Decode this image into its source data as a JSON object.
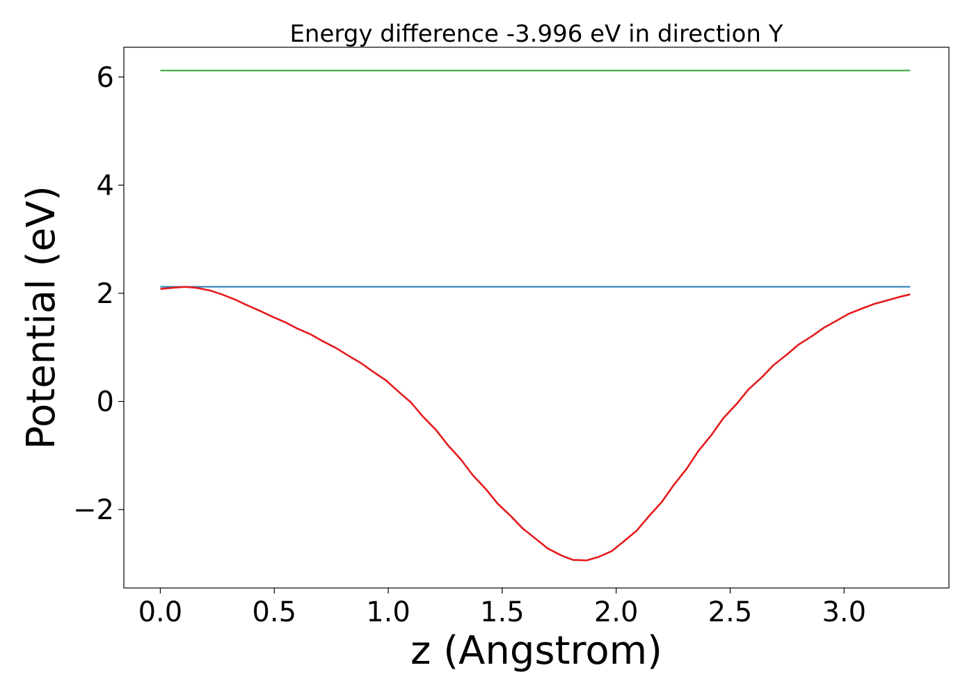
{
  "chart_data": {
    "type": "line",
    "title": "Energy difference -3.996 eV in direction Y",
    "xlabel": "z (Angstrom)",
    "ylabel": "Potential (eV)",
    "xlim": [
      -0.16,
      3.46
    ],
    "ylim": [
      -3.45,
      6.55
    ],
    "xticks": [
      0.0,
      0.5,
      1.0,
      1.5,
      2.0,
      2.5,
      3.0
    ],
    "xtick_labels": [
      "0.0",
      "0.5",
      "1.0",
      "1.5",
      "2.0",
      "2.5",
      "3.0"
    ],
    "yticks": [
      -2,
      0,
      2,
      4,
      6
    ],
    "ytick_labels": [
      "−2",
      "0",
      "2",
      "4",
      "6"
    ],
    "grid": false,
    "series": [
      {
        "color": "#2ca02c",
        "x": [
          0.0,
          3.29
        ],
        "y": [
          6.12,
          6.12
        ]
      },
      {
        "color": "#1f77b4",
        "x": [
          0.0,
          3.29
        ],
        "y": [
          2.12,
          2.12
        ]
      },
      {
        "color": "#e41a1c",
        "x": [
          0.0,
          0.05,
          0.11,
          0.16,
          0.22,
          0.27,
          0.33,
          0.38,
          0.44,
          0.49,
          0.55,
          0.6,
          0.66,
          0.71,
          0.77,
          0.82,
          0.88,
          0.93,
          0.99,
          1.04,
          1.1,
          1.15,
          1.21,
          1.26,
          1.32,
          1.37,
          1.43,
          1.48,
          1.54,
          1.59,
          1.65,
          1.7,
          1.76,
          1.81,
          1.87,
          1.92,
          1.98,
          2.03,
          2.09,
          2.14,
          2.2,
          2.25,
          2.31,
          2.36,
          2.42,
          2.47,
          2.53,
          2.58,
          2.64,
          2.69,
          2.75,
          2.8,
          2.86,
          2.91,
          2.97,
          3.02,
          3.08,
          3.13,
          3.19,
          3.24,
          3.29
        ],
        "y": [
          2.08,
          2.1,
          2.12,
          2.1,
          2.05,
          1.98,
          1.88,
          1.78,
          1.67,
          1.57,
          1.46,
          1.35,
          1.24,
          1.12,
          0.99,
          0.86,
          0.71,
          0.56,
          0.39,
          0.2,
          -0.02,
          -0.27,
          -0.53,
          -0.8,
          -1.08,
          -1.36,
          -1.63,
          -1.89,
          -2.13,
          -2.35,
          -2.55,
          -2.72,
          -2.85,
          -2.93,
          -2.94,
          -2.88,
          -2.77,
          -2.6,
          -2.39,
          -2.14,
          -1.86,
          -1.56,
          -1.24,
          -0.92,
          -0.61,
          -0.31,
          -0.04,
          0.22,
          0.45,
          0.67,
          0.87,
          1.05,
          1.21,
          1.36,
          1.5,
          1.62,
          1.72,
          1.8,
          1.87,
          1.93,
          1.98
        ]
      }
    ]
  }
}
